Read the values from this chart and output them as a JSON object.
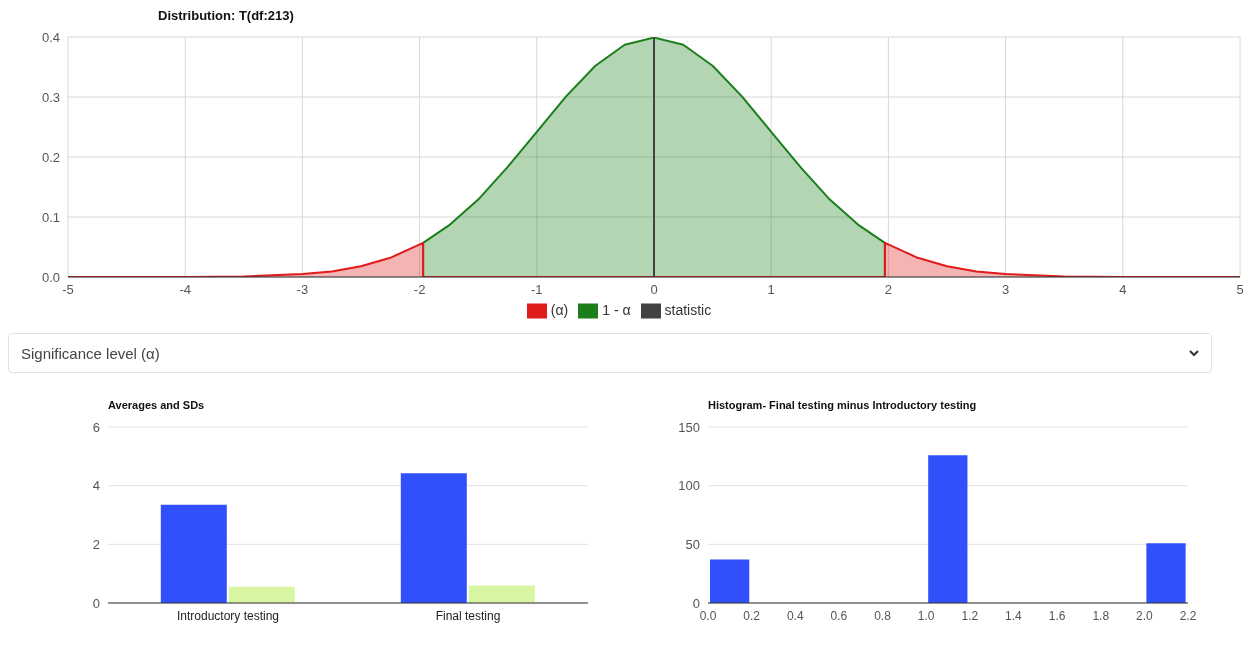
{
  "chart_data": [
    {
      "type": "area",
      "title": "Distribution: T(df:213)",
      "annotations": [
        "Significance level (α)"
      ],
      "xlim": [
        -5,
        5
      ],
      "xticks": [
        -5,
        -4,
        -3,
        -2,
        -1,
        0,
        1,
        2,
        3,
        4,
        5
      ],
      "ylim": [
        0,
        0.4
      ],
      "yticks": [
        {
          "value": 0,
          "label": "0.0"
        },
        {
          "value": 0.1,
          "label": "0.1"
        },
        {
          "value": 0.2,
          "label": "0.2"
        },
        {
          "value": 0.3,
          "label": "0.3"
        },
        {
          "value": 0.4,
          "label": "0.4"
        }
      ],
      "grid": true,
      "legend": "bottom",
      "series": [
        {
          "name": "1 - α",
          "color": "#1a7f1a",
          "x": [
            -1.97,
            -1.97,
            -1.75,
            -1.5,
            -1.25,
            -1,
            -0.75,
            -0.5,
            -0.25,
            0,
            0.25,
            0.5,
            0.75,
            1,
            1.25,
            1.5,
            1.75,
            1.97,
            1.97
          ],
          "values": [
            0,
            0.057,
            0.086,
            0.129,
            0.183,
            0.242,
            0.301,
            0.352,
            0.387,
            0.399,
            0.387,
            0.352,
            0.301,
            0.242,
            0.183,
            0.129,
            0.086,
            0.057,
            0
          ]
        },
        {
          "name": "statistic",
          "type": "line",
          "color": "#424242",
          "x": [
            0,
            0
          ],
          "values": [
            0,
            0.399
          ]
        },
        {
          "name": "(α)",
          "color": "#e01b1b",
          "x": [
            -5,
            -4,
            -3.5,
            -3,
            -2.75,
            -2.5,
            -2.25,
            -1.97,
            -1.97,
            1.97,
            1.97,
            2.25,
            2.5,
            2.75,
            3,
            3.5,
            4,
            5
          ],
          "values": [
            0,
            0,
            0.001,
            0.005,
            0.009,
            0.018,
            0.032,
            0.057,
            0,
            0,
            0.057,
            0.032,
            0.018,
            0.009,
            0.005,
            0.001,
            0,
            0
          ]
        }
      ]
    },
    {
      "type": "bar",
      "title": "Averages and SDs",
      "categories": [
        "Introductory testing",
        "Final testing"
      ],
      "ylim": [
        0,
        6
      ],
      "yticks": [
        0,
        2,
        4,
        6
      ],
      "grid": "y",
      "series": [
        {
          "color": "#3150fb",
          "values": [
            3.35,
            4.42
          ]
        },
        {
          "color": "#d8f5a2",
          "values": [
            0.55,
            0.6
          ]
        }
      ]
    },
    {
      "type": "histogram",
      "title": "Histogram- Final testing minus Introductory testing",
      "color": "#3150fb",
      "bins": [
        0,
        0.2,
        0.4,
        0.6,
        0.8,
        1,
        1.2,
        1.4,
        1.6,
        1.8,
        2,
        2.2
      ],
      "values": [
        37,
        0,
        0,
        0,
        0,
        126,
        0,
        0,
        0,
        0,
        51
      ],
      "xlim": [
        0,
        2.2
      ],
      "xticks": [
        {
          "value": 0,
          "label": "0.0"
        },
        {
          "value": 0.2,
          "label": "0.2"
        },
        {
          "value": 0.4,
          "label": "0.4"
        },
        {
          "value": 0.6,
          "label": "0.6"
        },
        {
          "value": 0.8,
          "label": "0.8"
        },
        {
          "value": 1,
          "label": "1.0"
        },
        {
          "value": 1.2,
          "label": "1.2"
        },
        {
          "value": 1.4,
          "label": "1.4"
        },
        {
          "value": 1.6,
          "label": "1.6"
        },
        {
          "value": 1.8,
          "label": "1.8"
        },
        {
          "value": 2,
          "label": "2.0"
        },
        {
          "value": 2.2,
          "label": "2.2"
        }
      ],
      "ylim": [
        0,
        150
      ],
      "yticks": [
        0,
        50,
        100,
        150
      ],
      "grid": "y"
    }
  ]
}
